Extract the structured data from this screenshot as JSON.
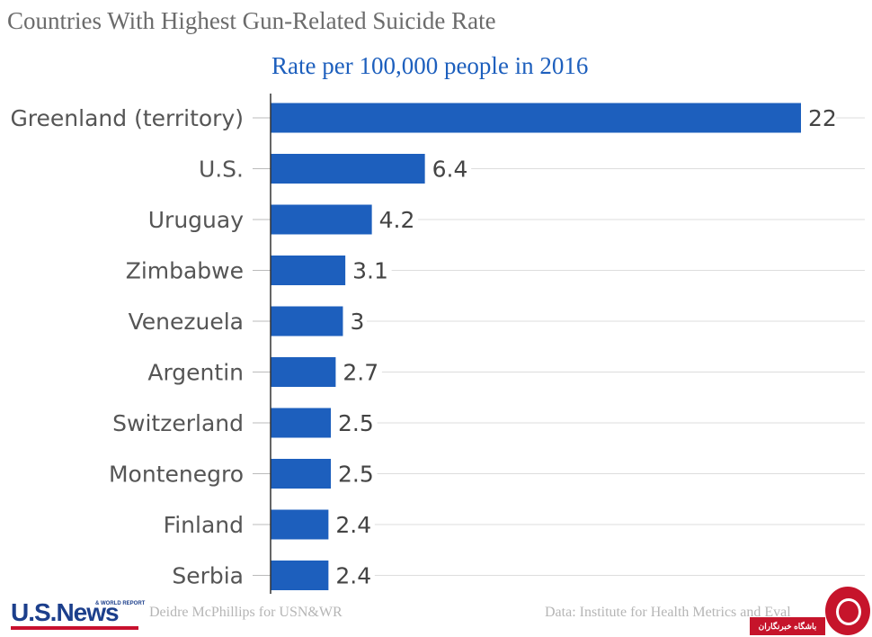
{
  "chart_data": {
    "type": "bar",
    "orientation": "horizontal",
    "title": "Countries With Highest Gun-Related Suicide Rate",
    "subtitle": "Rate per 100,000 people in 2016",
    "categories": [
      "Greenland (territory)",
      "U.S.",
      "Uruguay",
      "Zimbabwe",
      "Venezuela",
      "Argentin",
      "Switzerland",
      "Montenegro",
      "Finland",
      "Serbia"
    ],
    "values": [
      22,
      6.4,
      4.2,
      3.1,
      3,
      2.7,
      2.5,
      2.5,
      2.4,
      2.4
    ],
    "value_labels": [
      "22",
      "6.4",
      "4.2",
      "3.1",
      "3",
      "2.7",
      "2.5",
      "2.5",
      "2.4",
      "2.4"
    ],
    "xlim": [
      0,
      22
    ],
    "grid": true,
    "colors": {
      "bar": "#1d5fbd",
      "gridline": "#dddddd",
      "axis": "#333333"
    }
  },
  "footer": {
    "logo_text": "U.S.News",
    "logo_subtext": "& WORLD REPORT",
    "credit": "Deidre McPhillips for USN&WR",
    "source": "Data: Institute for Health Metrics and Eval",
    "badge_text": "باشگاه خبرنگاران"
  }
}
